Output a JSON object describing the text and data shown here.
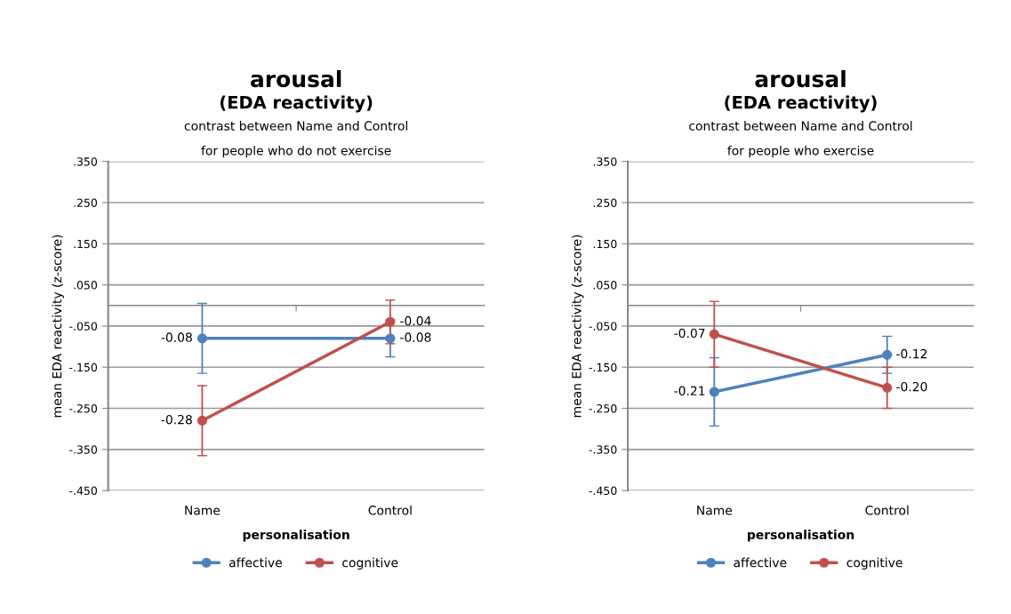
{
  "chart_data": [
    {
      "type": "line",
      "title": "arousal",
      "subtitle": "(EDA reactivity)",
      "annotations": [
        "contrast between Name and Control",
        "for people who do not exercise"
      ],
      "xlabel": "personalisation",
      "ylabel": "mean EDA reactivity (z-score)",
      "categories": [
        "Name",
        "Control"
      ],
      "series": [
        {
          "name": "affective",
          "color": "#4f81bd",
          "values": [
            -0.08,
            -0.08
          ],
          "errors": [
            0.085,
            0.045
          ],
          "value_labels": [
            "-0.08",
            "-0.08"
          ]
        },
        {
          "name": "cognitive",
          "color": "#c0504d",
          "values": [
            -0.28,
            -0.04
          ],
          "errors": [
            0.085,
            0.053
          ],
          "value_labels": [
            "-0.28",
            "-0.04"
          ]
        }
      ],
      "ylim": [
        -0.45,
        0.35
      ],
      "yticks": [
        {
          "value": 0.35,
          "label": ".350"
        },
        {
          "value": 0.25,
          "label": ".250"
        },
        {
          "value": 0.15,
          "label": ".150"
        },
        {
          "value": 0.05,
          "label": ".050"
        },
        {
          "value": -0.05,
          "label": "-.050"
        },
        {
          "value": -0.15,
          "label": "-.150"
        },
        {
          "value": -0.25,
          "label": "-.250"
        },
        {
          "value": -0.35,
          "label": "-.350"
        },
        {
          "value": -0.45,
          "label": "-.450"
        }
      ],
      "grid": "y",
      "legend": "bottom",
      "marker": "circle",
      "line_style": "solid"
    },
    {
      "type": "line",
      "title": "arousal",
      "subtitle": "(EDA reactivity)",
      "annotations": [
        "contrast between Name and Control",
        "for people who exercise"
      ],
      "xlabel": "personalisation",
      "ylabel": "mean EDA reactivity (z-score)",
      "categories": [
        "Name",
        "Control"
      ],
      "series": [
        {
          "name": "affective",
          "color": "#4f81bd",
          "values": [
            -0.21,
            -0.12
          ],
          "errors": [
            0.083,
            0.045
          ],
          "value_labels": [
            "-0.21",
            "-0.12"
          ]
        },
        {
          "name": "cognitive",
          "color": "#c0504d",
          "values": [
            -0.07,
            -0.2
          ],
          "errors": [
            0.08,
            0.05
          ],
          "value_labels": [
            "-0.07",
            "-0.20"
          ]
        }
      ],
      "ylim": [
        -0.45,
        0.35
      ],
      "yticks": [
        {
          "value": 0.35,
          "label": ".350"
        },
        {
          "value": 0.25,
          "label": ".250"
        },
        {
          "value": 0.15,
          "label": ".150"
        },
        {
          "value": 0.05,
          "label": ".050"
        },
        {
          "value": -0.05,
          "label": "-.050"
        },
        {
          "value": -0.15,
          "label": "-.150"
        },
        {
          "value": -0.25,
          "label": "-.250"
        },
        {
          "value": -0.35,
          "label": "-.350"
        },
        {
          "value": -0.45,
          "label": "-.450"
        }
      ],
      "grid": "y",
      "legend": "bottom",
      "marker": "circle",
      "line_style": "solid"
    }
  ]
}
